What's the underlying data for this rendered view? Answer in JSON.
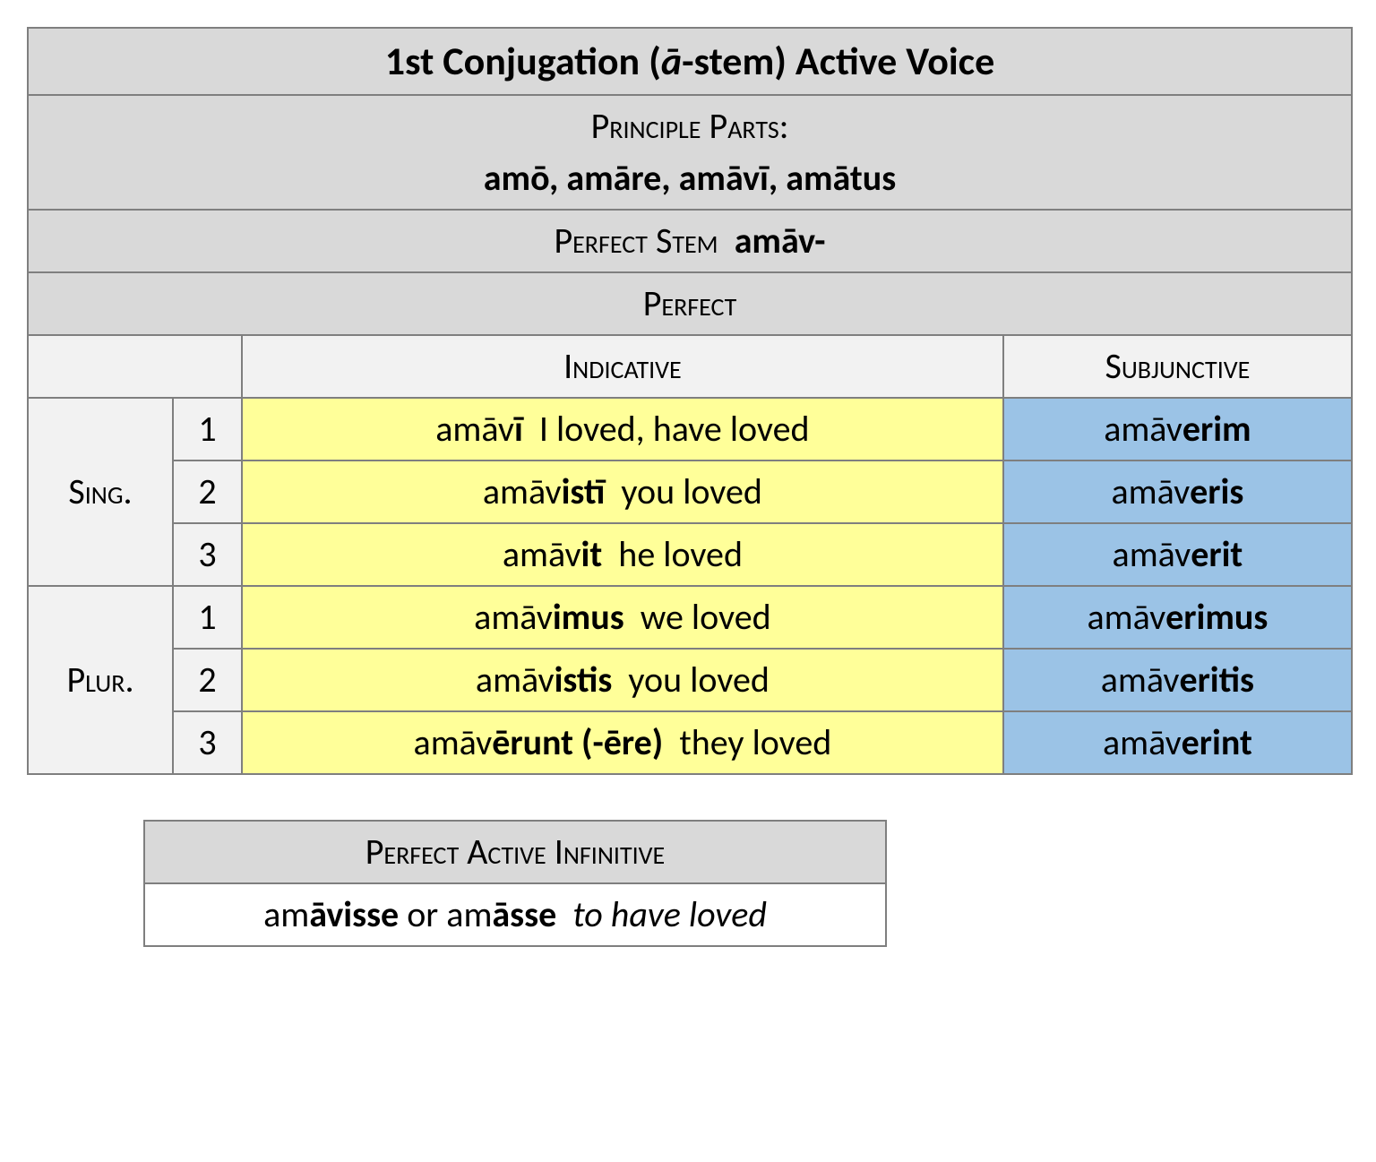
{
  "main": {
    "title_html": "1st Conjugation (<span class='i'>ā</span>-stem) Active Voice",
    "principle_label": "Principle Parts:",
    "principle_parts_html": "<b>amō</b>, <b>amāre</b>, <b>amāvī</b>, <b>amātus</b>",
    "perfect_stem_html": "Perfect Stem&nbsp;&nbsp;<b style='font-variant:normal'>amāv-</b>",
    "tense_label": "Perfect",
    "mood_ind": "Indicative",
    "mood_subj": "Subjunctive",
    "sing_label": "Sing.",
    "plur_label": "Plur.",
    "rows": [
      {
        "p": "1",
        "ind_html": "amāv<b>ī</b>&nbsp;&nbsp;I loved, have loved",
        "subj_html": "amāv<b>erim</b>"
      },
      {
        "p": "2",
        "ind_html": "amāv<b>istī</b>&nbsp;&nbsp;you loved",
        "subj_html": "amāv<b>eris</b>"
      },
      {
        "p": "3",
        "ind_html": "amāv<b>it</b>&nbsp;&nbsp;he loved",
        "subj_html": "amāv<b>erit</b>"
      },
      {
        "p": "1",
        "ind_html": "amāv<b>imus</b>&nbsp;&nbsp;we loved",
        "subj_html": "amāv<b>erimus</b>"
      },
      {
        "p": "2",
        "ind_html": "amāv<b>istis</b>&nbsp;&nbsp;you loved",
        "subj_html": "amāv<b>eritis</b>"
      },
      {
        "p": "3",
        "ind_html": "amāv<b>ērunt</b> <b>(-ēre)</b>&nbsp;&nbsp;they loved",
        "subj_html": "amāv<b>erint</b>"
      }
    ]
  },
  "inf": {
    "label": "Perfect Active Infinitive",
    "value_html": "am<b>āvisse</b> or am<b>āsse</b>&nbsp;&nbsp;<span class='i'>to have loved</span>"
  },
  "colors": {
    "header_gray": "#d9d9d9",
    "light_gray": "#f2f2f2",
    "indicative_bg": "#ffff99",
    "subjunctive_bg": "#9bc3e6",
    "border": "#7f7f7f"
  }
}
